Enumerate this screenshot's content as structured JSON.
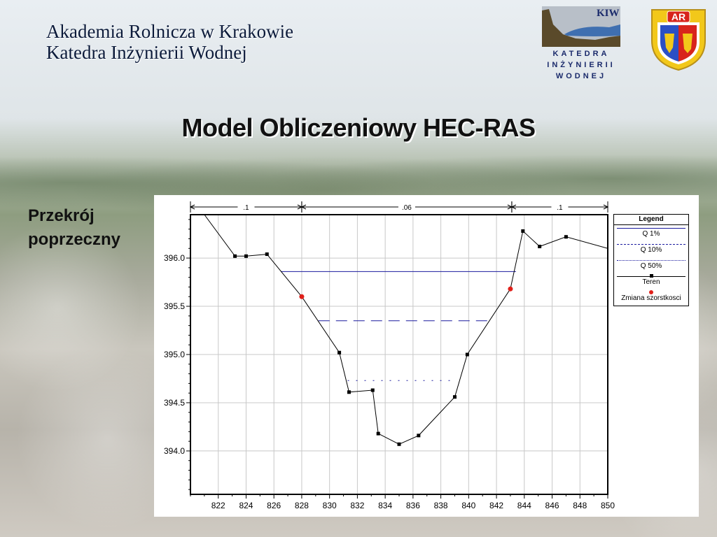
{
  "header": {
    "university": "Akademia Rolnicza w Krakowie",
    "department": "Katedra Inżynierii Wodnej"
  },
  "logos": {
    "kiw": {
      "abbr": "KIW",
      "line1": "KATEDRA",
      "line2": "INŻYNIERII",
      "line3": "WODNEJ"
    },
    "ar": {
      "abbr": "AR"
    }
  },
  "title": "Model Obliczeniowy HEC-RAS",
  "side_label": {
    "line1": "Przekrój",
    "line2": "poprzeczny"
  },
  "chart_data": {
    "type": "line",
    "xlim": [
      820,
      850
    ],
    "ylim": [
      393.55,
      396.45
    ],
    "x_ticks": [
      822,
      824,
      826,
      828,
      830,
      832,
      834,
      836,
      838,
      840,
      842,
      844,
      846,
      848,
      850
    ],
    "y_ticks": [
      394.0,
      394.5,
      395.0,
      395.5,
      396.0
    ],
    "y_tick_labels": [
      "394.0",
      "394.5",
      "395.0",
      "395.5",
      "396.0"
    ],
    "roughness_bands": [
      {
        "label": ".1",
        "from": 820,
        "to": 828
      },
      {
        "label": ".06",
        "from": 828,
        "to": 843.1
      },
      {
        "label": ".1",
        "from": 843.1,
        "to": 850
      }
    ],
    "terrain": [
      [
        821.0,
        396.45
      ],
      [
        823.2,
        396.02
      ],
      [
        824.0,
        396.02
      ],
      [
        825.5,
        396.04
      ],
      [
        828.0,
        395.6
      ],
      [
        830.7,
        395.02
      ],
      [
        831.4,
        394.61
      ],
      [
        833.1,
        394.63
      ],
      [
        833.5,
        394.18
      ],
      [
        835.0,
        394.07
      ],
      [
        836.4,
        394.16
      ],
      [
        839.0,
        394.56
      ],
      [
        839.9,
        395.0
      ],
      [
        843.0,
        395.68
      ],
      [
        843.9,
        396.28
      ],
      [
        845.1,
        396.12
      ],
      [
        847.0,
        396.22
      ],
      [
        850.0,
        396.1
      ]
    ],
    "roughness_change_points": [
      [
        828.0,
        395.6
      ],
      [
        843.0,
        395.68
      ]
    ],
    "water_levels": [
      {
        "name": "Q 1%",
        "y": 395.86,
        "x_from": 826.5,
        "x_to": 843.4,
        "color": "#1a1a9e",
        "style": "solid"
      },
      {
        "name": "Q 10%",
        "y": 395.35,
        "x_from": 829.2,
        "x_to": 841.4,
        "color": "#1a1a9e",
        "style": "dashed"
      },
      {
        "name": "Q 50%",
        "y": 394.73,
        "x_from": 831.3,
        "x_to": 839.1,
        "color": "#1a1a9e",
        "style": "dotted"
      }
    ],
    "legend": {
      "title": "Legend",
      "placement": "right",
      "entries": [
        {
          "label": "Q 1%"
        },
        {
          "label": "Q 10%"
        },
        {
          "label": "Q 50%"
        },
        {
          "label": "Teren"
        },
        {
          "label": "Zmiana szorstkosci"
        }
      ]
    },
    "colors": {
      "terrain": "#000000",
      "roughness_point": "#e0201a",
      "grid": "#c8c8c8",
      "water": "#1a1a9e"
    }
  }
}
